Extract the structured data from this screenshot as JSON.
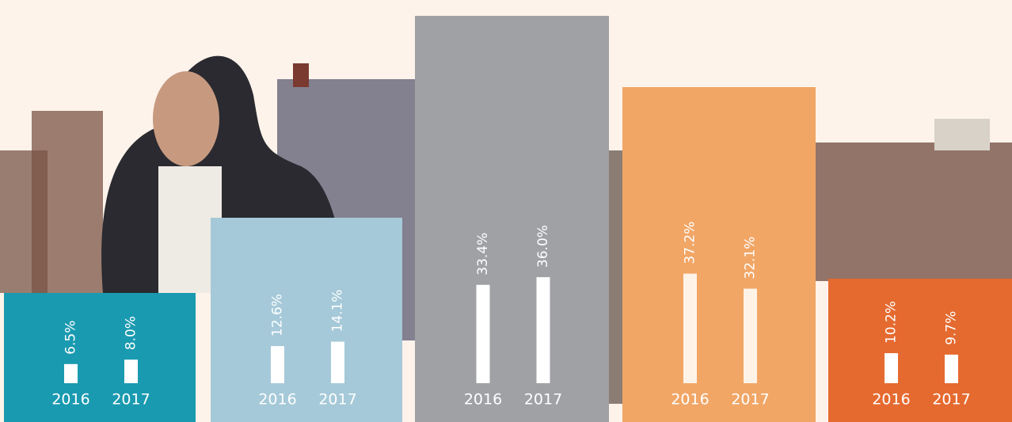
{
  "chart_data": [
    {
      "type": "bar",
      "categories": [
        "2016",
        "2017"
      ],
      "values": [
        6.5,
        8.0
      ],
      "value_labels": [
        "6.5%",
        "8.0%"
      ],
      "color": "#1a9ab0"
    },
    {
      "type": "bar",
      "categories": [
        "2016",
        "2017"
      ],
      "values": [
        12.6,
        14.1
      ],
      "value_labels": [
        "12.6%",
        "14.1%"
      ],
      "color": "#a5c9d8"
    },
    {
      "type": "bar",
      "categories": [
        "2016",
        "2017"
      ],
      "values": [
        33.4,
        36.0
      ],
      "value_labels": [
        "33.4%",
        "36.0%"
      ],
      "color": "#a0a1a5"
    },
    {
      "type": "bar",
      "categories": [
        "2016",
        "2017"
      ],
      "values": [
        37.2,
        32.1
      ],
      "value_labels": [
        "37.2%",
        "32.1%"
      ],
      "color": "#f1a666"
    },
    {
      "type": "bar",
      "categories": [
        "2016",
        "2017"
      ],
      "values": [
        10.2,
        9.7
      ],
      "value_labels": [
        "10.2%",
        "9.7%"
      ],
      "color": "#e56a2f"
    }
  ]
}
